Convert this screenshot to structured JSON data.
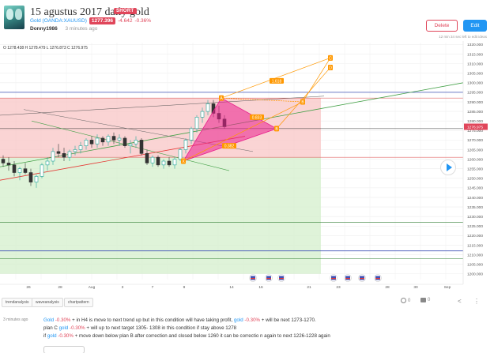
{
  "header": {
    "title": "15 agustus 2017 daily gold",
    "badge": "SHORT",
    "symbol": "Gold (OANDA:XAUUSD)",
    "price": "1277.396",
    "change": "-4.642",
    "change_pct": "-0.36%",
    "username": "Donny1986",
    "time_ago": "3 minutes ago",
    "delete_label": "Delete",
    "edit_label": "Edit",
    "small_ago": "12 min 34 sec left to edit ideas"
  },
  "chart": {
    "ohlc": "O 1278.438  H 1278.479  L 1276.873  C 1276.975",
    "current_price_label": "1276.975",
    "y_ticks": [
      "1320.000",
      "1315.000",
      "1310.000",
      "1305.000",
      "1300.000",
      "1295.000",
      "1290.000",
      "1285.000",
      "1280.000",
      "1275.000",
      "1270.000",
      "1265.000",
      "1260.000",
      "1255.000",
      "1250.000",
      "1245.000",
      "1240.000",
      "1235.000",
      "1230.000",
      "1225.000",
      "1220.000",
      "1215.000",
      "1210.000",
      "1205.000",
      "1200.000"
    ],
    "x_ticks": [
      "",
      "26",
      "28",
      "Aug",
      "3",
      "7",
      "9",
      "",
      "14",
      "16",
      "",
      "21",
      "23",
      "",
      "28",
      "30",
      "Sep"
    ],
    "pattern_points": [
      "A",
      "X",
      "B",
      "C",
      "D",
      "B"
    ],
    "fib_labels": [
      "0.382",
      "1.618",
      "0.833"
    ],
    "colors": {
      "accent": "#2196f3",
      "bearish": "#e0465a",
      "pattern": "#e91e8c",
      "fib": "#ff9800",
      "red_zone": "#f8c6c6",
      "green_zone": "#d4efcc"
    }
  },
  "chart_data": {
    "type": "candlestick",
    "title": "",
    "xlabel": "",
    "ylabel": "",
    "ylim": [
      1197,
      1321
    ],
    "x_ticks": [
      "26",
      "28",
      "Aug",
      "3",
      "7",
      "9",
      "14",
      "16",
      "21",
      "23",
      "28",
      "30",
      "Sep"
    ],
    "annotations": [
      "X",
      "A",
      "B",
      "C",
      "D",
      "0.382",
      "1.618",
      "0.833"
    ],
    "series": [
      {
        "values": [
          [
            1260,
            1262,
            1256,
            1258
          ],
          [
            1258,
            1261,
            1254,
            1257
          ],
          [
            1257,
            1259,
            1251,
            1253
          ],
          [
            1253,
            1256,
            1249,
            1255
          ],
          [
            1255,
            1258,
            1252,
            1253
          ],
          [
            1253,
            1255,
            1246,
            1248
          ],
          [
            1248,
            1252,
            1245,
            1251
          ],
          [
            1251,
            1258,
            1250,
            1257
          ],
          [
            1257,
            1261,
            1254,
            1259
          ],
          [
            1259,
            1266,
            1257,
            1264
          ],
          [
            1264,
            1268,
            1261,
            1263
          ],
          [
            1263,
            1266,
            1259,
            1261
          ],
          [
            1261,
            1265,
            1259,
            1264
          ],
          [
            1264,
            1267,
            1262,
            1265
          ],
          [
            1265,
            1269,
            1263,
            1267
          ],
          [
            1267,
            1271,
            1265,
            1270
          ],
          [
            1270,
            1272,
            1266,
            1268
          ],
          [
            1268,
            1273,
            1266,
            1271
          ],
          [
            1271,
            1272,
            1267,
            1269
          ],
          [
            1269,
            1273,
            1267,
            1272
          ],
          [
            1272,
            1274,
            1268,
            1270
          ],
          [
            1270,
            1273,
            1267,
            1271
          ],
          [
            1271,
            1272,
            1266,
            1267
          ],
          [
            1267,
            1270,
            1263,
            1268
          ],
          [
            1268,
            1272,
            1266,
            1270
          ],
          [
            1270,
            1271,
            1262,
            1263
          ],
          [
            1263,
            1265,
            1257,
            1258
          ],
          [
            1258,
            1262,
            1256,
            1261
          ],
          [
            1261,
            1262,
            1256,
            1257
          ],
          [
            1257,
            1260,
            1255,
            1259
          ],
          [
            1259,
            1261,
            1256,
            1257
          ],
          [
            1257,
            1261,
            1255,
            1260
          ],
          [
            1260,
            1266,
            1259,
            1265
          ],
          [
            1265,
            1271,
            1263,
            1270
          ],
          [
            1270,
            1277,
            1268,
            1276
          ],
          [
            1276,
            1283,
            1274,
            1282
          ],
          [
            1282,
            1287,
            1279,
            1285
          ],
          [
            1285,
            1291,
            1283,
            1289
          ],
          [
            1289,
            1291,
            1282,
            1284
          ],
          [
            1284,
            1288,
            1279,
            1281
          ],
          [
            1281,
            1283,
            1276,
            1277
          ]
        ]
      }
    ]
  },
  "tags": {
    "items": [
      "trendanalysis",
      "waveanalysis",
      "chartpattern"
    ],
    "likes": "0",
    "comments": "0"
  },
  "comment": {
    "time": "3 minutes ago",
    "line1": {
      "pre": "",
      "gold1": "Gold",
      "pct1": "-0.30%",
      "mid": " + in H4 is move to next trend up but in this condition will have taking profit, ",
      "gold2": "gold",
      "pct2": "-0.30%",
      "post": " + will be next 1273-1270."
    },
    "line2": {
      "pre": "plan C ",
      "gold1": "gold",
      "pct1": "-0.30%",
      "post": " + will up to next target 1305- 1308 in this condition if stay above 1278"
    },
    "line3": {
      "pre": "if ",
      "gold1": "gold",
      "pct1": "-0.30%",
      "post": " + move down below plan B after correction and closed below 1260 it can be correctio n again to next 1226-1228 again"
    }
  }
}
